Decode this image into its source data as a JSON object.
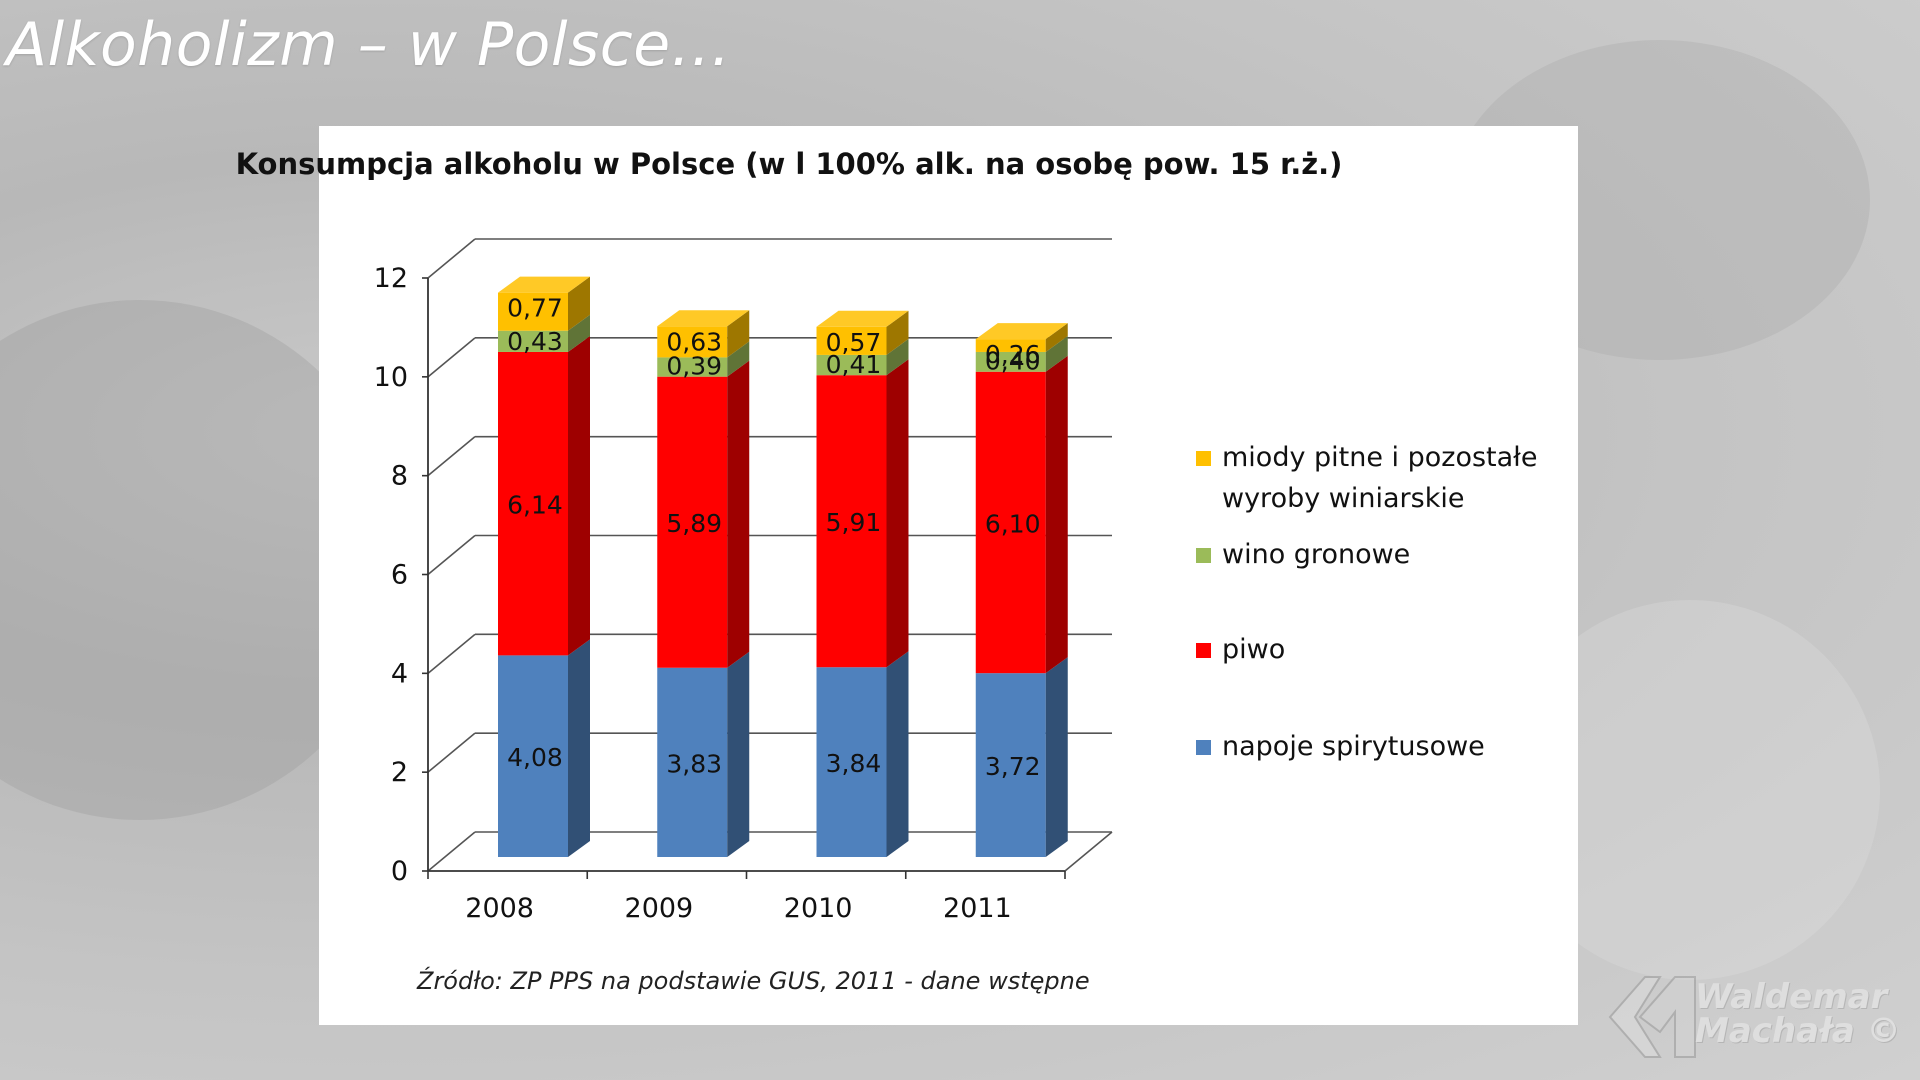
{
  "slide": {
    "title": "Alkoholizm – w Polsce…"
  },
  "watermark": {
    "line1": "Waldemar",
    "line2": "Machała ©"
  },
  "chart_data": {
    "type": "bar",
    "stacked": true,
    "three_d": true,
    "title": "Konsumpcja alkoholu  w Polsce (w l 100% alk. na osobę pow. 15 r.ż.)",
    "source": "Źródło: ZP PPS na podstawie GUS, 2011 - dane wstępne",
    "categories": [
      "2008",
      "2009",
      "2010",
      "2011"
    ],
    "ylim": [
      0,
      12
    ],
    "yticks": [
      "0",
      "2",
      "4",
      "6",
      "8",
      "10",
      "12"
    ],
    "grid": true,
    "legend_position": "right",
    "series": [
      {
        "name": "napoje spirytusowe",
        "color": "#4f81bd",
        "values": [
          4.08,
          3.83,
          3.84,
          3.72
        ],
        "labels": [
          "4,08",
          "3,83",
          "3,84",
          "3,72"
        ]
      },
      {
        "name": "piwo",
        "color": "#ff0000",
        "values": [
          6.14,
          5.89,
          5.91,
          6.1
        ],
        "labels": [
          "6,14",
          "5,89",
          "5,91",
          "6,10"
        ]
      },
      {
        "name": "wino gronowe",
        "color": "#9bbb59",
        "values": [
          0.43,
          0.39,
          0.41,
          0.4
        ],
        "labels": [
          "0,43",
          "0,39",
          "0,41",
          "0,40"
        ]
      },
      {
        "name": "miody pitne i pozostałe wyroby winiarskie",
        "legend_lines": [
          "miody pitne i pozostałe",
          "wyroby winiarskie"
        ],
        "color": "#ffc000",
        "values": [
          0.77,
          0.63,
          0.57,
          0.26
        ],
        "labels": [
          "0,77",
          "0,63",
          "0,57",
          "0,26"
        ]
      }
    ]
  }
}
